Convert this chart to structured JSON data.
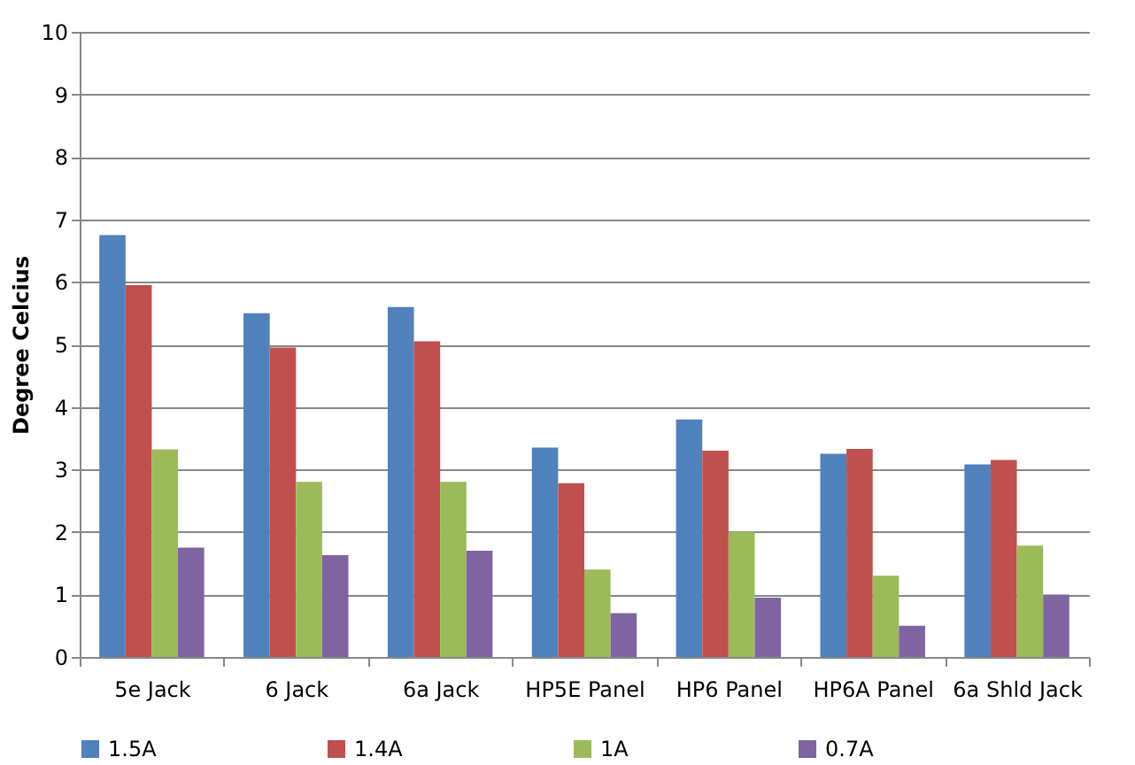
{
  "chart_data": {
    "type": "bar",
    "ylabel": "Degree Celcius",
    "categories": [
      "5e Jack",
      "6 Jack",
      "6a Jack",
      "HP5E Panel",
      "HP6 Panel",
      "HP6A Panel",
      "6a Shld Jack"
    ],
    "series": [
      {
        "name": "1.5A",
        "color": "#4f81bd",
        "values": [
          6.75,
          5.5,
          5.6,
          3.35,
          3.8,
          3.25,
          3.08
        ]
      },
      {
        "name": "1.4A",
        "color": "#c0504d",
        "values": [
          5.95,
          4.95,
          5.05,
          2.78,
          3.3,
          3.33,
          3.15
        ]
      },
      {
        "name": "1A",
        "color": "#9bbb59",
        "values": [
          3.32,
          2.8,
          2.8,
          1.4,
          2.0,
          1.3,
          1.78
        ]
      },
      {
        "name": "0.7A",
        "color": "#8064a2",
        "values": [
          1.75,
          1.63,
          1.7,
          0.7,
          0.95,
          0.5,
          1.0
        ]
      }
    ],
    "ylim": [
      0,
      10
    ],
    "yticks": [
      0,
      1,
      2,
      3,
      4,
      5,
      6,
      7,
      8,
      9,
      10
    ],
    "grid": "y",
    "legend": "bottom"
  }
}
